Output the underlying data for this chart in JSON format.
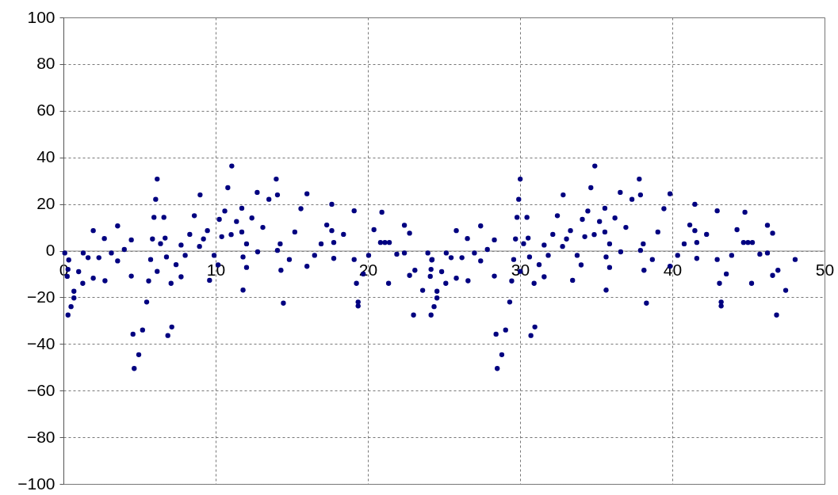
{
  "chart_data": {
    "type": "scatter",
    "marker": "circle",
    "grid": true,
    "xlim": [
      0,
      50
    ],
    "xticks": [
      0,
      10,
      20,
      30,
      40,
      50
    ],
    "ylim": [
      -100,
      100
    ],
    "yticks": [
      -100,
      -80,
      -60,
      -40,
      -20,
      0,
      20,
      40,
      60,
      80,
      100
    ],
    "series": [
      {
        "color": "#000080",
        "x": [
          0.09,
          0.35,
          0.3,
          0.25,
          0.3,
          0.5,
          0.69,
          0.69,
          1.0,
          1.3,
          1.27,
          1.62,
          1.96,
          1.96,
          2.33,
          2.69,
          2.73,
          3.15,
          3.56,
          3.56,
          4.0,
          4.46,
          4.46,
          4.57,
          4.65,
          4.95,
          5.2,
          5.47,
          5.6,
          5.73,
          5.85,
          5.95,
          6.06,
          6.16,
          6.16,
          6.38,
          6.6,
          6.68,
          6.77,
          6.86,
          7.12,
          7.07,
          7.4,
          7.73,
          7.73,
          8.0,
          8.3,
          8.6,
          8.98,
          8.94,
          9.2,
          9.46,
          9.6,
          9.9,
          10.24,
          10.16,
          10.4,
          10.6,
          10.8,
          11.06,
          11.02,
          11.37,
          11.72,
          11.72,
          11.8,
          11.8,
          12.03,
          12.03,
          12.38,
          12.73,
          12.76,
          13.1,
          13.5,
          13.98,
          14.06,
          14.06,
          14.24,
          14.29,
          14.45,
          14.84,
          15.2,
          15.6,
          16.0,
          16.0,
          16.5,
          16.93,
          17.3,
          17.63,
          17.63,
          17.76,
          17.76,
          18.4,
          19.1,
          19.1,
          19.25,
          19.36,
          19.36,
          19.7,
          20.05,
          20.4,
          20.92,
          20.83,
          21.12,
          21.41,
          21.36,
          21.9,
          22.4,
          22.4,
          22.74,
          22.74,
          23.09,
          23.0,
          23.6,
          24.22,
          23.94,
          24.2,
          24.15,
          24.1,
          24.15,
          24.35,
          24.54,
          24.54,
          24.85,
          25.15,
          25.12,
          25.47,
          25.81,
          25.81,
          26.18,
          26.54,
          26.58,
          27.0,
          27.41,
          27.41,
          27.85,
          28.31,
          28.31,
          28.42,
          28.5,
          28.8,
          29.05,
          29.32,
          29.45,
          29.58,
          29.7,
          29.8,
          29.91,
          30.01,
          30.01,
          30.23,
          30.45,
          30.53,
          30.62,
          30.71,
          30.97,
          30.92,
          31.25,
          31.58,
          31.58,
          31.85,
          32.15,
          32.45,
          32.83,
          32.79,
          33.05,
          33.31,
          33.45,
          33.75,
          34.09,
          34.01,
          34.25,
          34.45,
          34.65,
          34.91,
          34.87,
          35.22,
          35.57,
          35.57,
          35.65,
          35.65,
          35.88,
          35.88,
          36.23,
          36.58,
          36.61,
          36.95,
          37.35,
          37.83,
          37.91,
          37.91,
          38.09,
          38.14,
          38.3,
          38.69,
          39.05,
          39.45,
          39.85,
          39.85,
          40.35,
          40.78,
          41.15,
          41.48,
          41.48,
          41.61,
          41.61,
          42.25,
          42.95,
          42.95,
          43.1,
          43.21,
          43.21,
          43.55,
          43.9,
          44.25,
          44.77,
          44.68,
          44.97,
          45.26,
          45.21,
          45.75,
          46.25,
          46.25,
          46.59,
          46.59,
          46.94,
          46.85,
          47.45,
          48.07
        ],
        "values": [
          -1,
          -4,
          -8,
          -11,
          -27.6,
          -24,
          -20.3,
          -17.4,
          -9,
          -1,
          -14,
          -3,
          8.6,
          -11.8,
          -3,
          5.2,
          -12.9,
          -1,
          10.6,
          -4.4,
          0.5,
          4.6,
          -10.9,
          -35.8,
          -50.5,
          -44.6,
          -34,
          -22,
          -13,
          -3.8,
          5,
          14.3,
          22,
          30.7,
          -8.9,
          3,
          14.3,
          5.4,
          -2.7,
          -36.4,
          -32.7,
          -14,
          -6,
          2.4,
          -11.2,
          -2,
          7,
          15,
          23.9,
          1.8,
          5,
          8.6,
          -12.7,
          -2,
          13.4,
          -6.1,
          6,
          17,
          27,
          36.3,
          6.9,
          12.5,
          18.2,
          8,
          -2.7,
          -16.9,
          -7.2,
          2.9,
          14,
          25,
          -0.5,
          10,
          22,
          30.7,
          23.9,
          0.1,
          2.9,
          -8.4,
          -22.5,
          -3.8,
          8,
          18,
          24.4,
          -6.7,
          -2,
          2.9,
          11,
          19.9,
          8.6,
          3.5,
          -3.3,
          7,
          17.1,
          -3.8,
          -14,
          -23.7,
          -22,
          -10,
          -2,
          9,
          16.5,
          3.5,
          3.5,
          3.5,
          -14,
          -1.5,
          10.9,
          -1,
          7.5,
          -10.6,
          -8.4,
          -27.6,
          -17,
          -3.8,
          -1,
          -4,
          -8,
          -11,
          -27.6,
          -24,
          -20.3,
          -17.4,
          -9,
          -1,
          -14,
          -3,
          8.6,
          -11.8,
          -3,
          5.2,
          -12.9,
          -1,
          10.6,
          -4.4,
          0.5,
          4.6,
          -10.9,
          -35.8,
          -50.5,
          -44.6,
          -34,
          -22,
          -13,
          -3.8,
          5,
          14.3,
          22,
          30.7,
          -8.9,
          3,
          14.3,
          5.4,
          -2.7,
          -36.4,
          -32.7,
          -14,
          -6,
          2.4,
          -11.2,
          -2,
          7,
          15,
          23.9,
          1.8,
          5,
          8.6,
          -12.7,
          -2,
          13.4,
          -6.1,
          6,
          17,
          27,
          36.3,
          6.9,
          12.5,
          18.2,
          8,
          -2.7,
          -16.9,
          -7.2,
          2.9,
          14,
          25,
          -0.5,
          10,
          22,
          30.7,
          23.9,
          0.1,
          2.9,
          -8.4,
          -22.5,
          -3.8,
          8,
          18,
          24.4,
          -6.7,
          -2,
          2.9,
          11,
          19.9,
          8.6,
          3.5,
          -3.3,
          7,
          17.1,
          -3.8,
          -14,
          -23.7,
          -22,
          -10,
          -2,
          9,
          16.5,
          3.5,
          3.5,
          3.5,
          -14,
          -1.5,
          10.9,
          -1,
          7.5,
          -10.6,
          -8.4,
          -27.6,
          -17,
          -3.8
        ]
      }
    ]
  }
}
